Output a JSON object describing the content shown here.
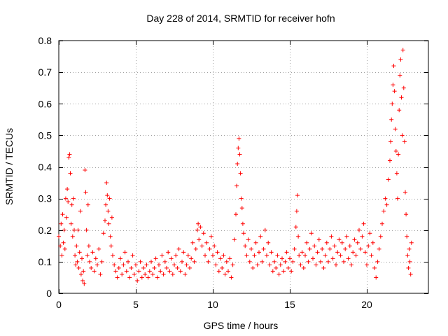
{
  "chart_data": {
    "type": "scatter",
    "title": "Day 228 of 2014, SRMTID for receiver hofn",
    "xlabel": "GPS time / hours",
    "ylabel": "SRMTID / TECUs",
    "xlim": [
      0,
      24
    ],
    "ylim": [
      0,
      0.8
    ],
    "grid": true,
    "marker": "+",
    "xticks": [
      0,
      5,
      10,
      15,
      20
    ],
    "xtick_labels": [
      "0",
      "5",
      "10",
      "15",
      "20"
    ],
    "yticks": [
      0,
      0.1,
      0.2,
      0.3,
      0.4,
      0.5,
      0.6,
      0.7,
      0.8
    ],
    "ytick_labels": [
      "0",
      "0.1",
      "0.2",
      "0.3",
      "0.4",
      "0.5",
      "0.6",
      "0.7",
      "0.8"
    ],
    "series": [
      {
        "name": "SRMTID",
        "color": "#ff0000",
        "points": [
          [
            0.0,
            0.18
          ],
          [
            0.1,
            0.15
          ],
          [
            0.15,
            0.22
          ],
          [
            0.2,
            0.12
          ],
          [
            0.25,
            0.25
          ],
          [
            0.3,
            0.16
          ],
          [
            0.35,
            0.2
          ],
          [
            0.4,
            0.14
          ],
          [
            0.45,
            0.3
          ],
          [
            0.5,
            0.24
          ],
          [
            0.55,
            0.33
          ],
          [
            0.6,
            0.29
          ],
          [
            0.65,
            0.43
          ],
          [
            0.7,
            0.44
          ],
          [
            0.75,
            0.38
          ],
          [
            0.8,
            0.22
          ],
          [
            0.85,
            0.28
          ],
          [
            0.9,
            0.18
          ],
          [
            0.95,
            0.3
          ],
          [
            1.0,
            0.2
          ],
          [
            1.05,
            0.12
          ],
          [
            1.1,
            0.09
          ],
          [
            1.15,
            0.15
          ],
          [
            1.2,
            0.1
          ],
          [
            1.25,
            0.2
          ],
          [
            1.3,
            0.08
          ],
          [
            1.35,
            0.13
          ],
          [
            1.4,
            0.26
          ],
          [
            1.45,
            0.06
          ],
          [
            1.5,
            0.11
          ],
          [
            1.55,
            0.04
          ],
          [
            1.6,
            0.07
          ],
          [
            1.65,
            0.03
          ],
          [
            1.7,
            0.39
          ],
          [
            1.75,
            0.32
          ],
          [
            1.8,
            0.2
          ],
          [
            1.85,
            0.12
          ],
          [
            1.9,
            0.28
          ],
          [
            1.95,
            0.15
          ],
          [
            2.0,
            0.1
          ],
          [
            2.1,
            0.08
          ],
          [
            2.2,
            0.13
          ],
          [
            2.3,
            0.07
          ],
          [
            2.4,
            0.11
          ],
          [
            2.5,
            0.09
          ],
          [
            2.6,
            0.14
          ],
          [
            2.7,
            0.06
          ],
          [
            2.8,
            0.1
          ],
          [
            2.9,
            0.19
          ],
          [
            3.0,
            0.23
          ],
          [
            3.05,
            0.28
          ],
          [
            3.1,
            0.35
          ],
          [
            3.15,
            0.31
          ],
          [
            3.2,
            0.26
          ],
          [
            3.25,
            0.22
          ],
          [
            3.3,
            0.3
          ],
          [
            3.35,
            0.18
          ],
          [
            3.4,
            0.15
          ],
          [
            3.45,
            0.24
          ],
          [
            3.5,
            0.12
          ],
          [
            3.6,
            0.09
          ],
          [
            3.7,
            0.07
          ],
          [
            3.8,
            0.05
          ],
          [
            3.9,
            0.08
          ],
          [
            4.0,
            0.11
          ],
          [
            4.1,
            0.06
          ],
          [
            4.2,
            0.09
          ],
          [
            4.3,
            0.13
          ],
          [
            4.4,
            0.07
          ],
          [
            4.5,
            0.1
          ],
          [
            4.6,
            0.05
          ],
          [
            4.7,
            0.08
          ],
          [
            4.8,
            0.12
          ],
          [
            4.9,
            0.06
          ],
          [
            5.0,
            0.09
          ],
          [
            5.1,
            0.04
          ],
          [
            5.2,
            0.07
          ],
          [
            5.3,
            0.1
          ],
          [
            5.4,
            0.05
          ],
          [
            5.5,
            0.08
          ],
          [
            5.6,
            0.06
          ],
          [
            5.7,
            0.09
          ],
          [
            5.8,
            0.05
          ],
          [
            5.9,
            0.07
          ],
          [
            6.0,
            0.1
          ],
          [
            6.1,
            0.06
          ],
          [
            6.2,
            0.08
          ],
          [
            6.3,
            0.11
          ],
          [
            6.4,
            0.05
          ],
          [
            6.5,
            0.09
          ],
          [
            6.6,
            0.07
          ],
          [
            6.7,
            0.12
          ],
          [
            6.8,
            0.06
          ],
          [
            6.9,
            0.1
          ],
          [
            7.0,
            0.08
          ],
          [
            7.1,
            0.13
          ],
          [
            7.2,
            0.07
          ],
          [
            7.3,
            0.11
          ],
          [
            7.4,
            0.06
          ],
          [
            7.5,
            0.09
          ],
          [
            7.6,
            0.12
          ],
          [
            7.7,
            0.08
          ],
          [
            7.8,
            0.14
          ],
          [
            7.9,
            0.07
          ],
          [
            8.0,
            0.1
          ],
          [
            8.1,
            0.13
          ],
          [
            8.2,
            0.06
          ],
          [
            8.3,
            0.09
          ],
          [
            8.4,
            0.12
          ],
          [
            8.5,
            0.08
          ],
          [
            8.6,
            0.11
          ],
          [
            8.7,
            0.16
          ],
          [
            8.8,
            0.1
          ],
          [
            8.9,
            0.14
          ],
          [
            9.0,
            0.2
          ],
          [
            9.05,
            0.22
          ],
          [
            9.1,
            0.17
          ],
          [
            9.2,
            0.21
          ],
          [
            9.3,
            0.15
          ],
          [
            9.4,
            0.19
          ],
          [
            9.5,
            0.12
          ],
          [
            9.6,
            0.16
          ],
          [
            9.7,
            0.1
          ],
          [
            9.8,
            0.14
          ],
          [
            9.9,
            0.18
          ],
          [
            10.0,
            0.12
          ],
          [
            10.1,
            0.15
          ],
          [
            10.2,
            0.09
          ],
          [
            10.3,
            0.13
          ],
          [
            10.4,
            0.07
          ],
          [
            10.5,
            0.11
          ],
          [
            10.6,
            0.08
          ],
          [
            10.7,
            0.12
          ],
          [
            10.8,
            0.06
          ],
          [
            10.9,
            0.1
          ],
          [
            11.0,
            0.07
          ],
          [
            11.1,
            0.11
          ],
          [
            11.2,
            0.05
          ],
          [
            11.3,
            0.09
          ],
          [
            11.4,
            0.17
          ],
          [
            11.5,
            0.25
          ],
          [
            11.55,
            0.34
          ],
          [
            11.6,
            0.41
          ],
          [
            11.65,
            0.46
          ],
          [
            11.7,
            0.49
          ],
          [
            11.75,
            0.44
          ],
          [
            11.8,
            0.38
          ],
          [
            11.85,
            0.3
          ],
          [
            11.9,
            0.27
          ],
          [
            11.95,
            0.22
          ],
          [
            12.0,
            0.19
          ],
          [
            12.1,
            0.15
          ],
          [
            12.2,
            0.12
          ],
          [
            12.3,
            0.17
          ],
          [
            12.4,
            0.1
          ],
          [
            12.5,
            0.14
          ],
          [
            12.6,
            0.08
          ],
          [
            12.7,
            0.12
          ],
          [
            12.8,
            0.16
          ],
          [
            12.9,
            0.09
          ],
          [
            13.0,
            0.13
          ],
          [
            13.1,
            0.18
          ],
          [
            13.2,
            0.1
          ],
          [
            13.3,
            0.14
          ],
          [
            13.4,
            0.2
          ],
          [
            13.5,
            0.12
          ],
          [
            13.6,
            0.16
          ],
          [
            13.7,
            0.09
          ],
          [
            13.8,
            0.13
          ],
          [
            13.9,
            0.07
          ],
          [
            14.0,
            0.1
          ],
          [
            14.1,
            0.08
          ],
          [
            14.2,
            0.12
          ],
          [
            14.3,
            0.06
          ],
          [
            14.4,
            0.09
          ],
          [
            14.5,
            0.11
          ],
          [
            14.6,
            0.07
          ],
          [
            14.7,
            0.1
          ],
          [
            14.8,
            0.13
          ],
          [
            14.9,
            0.08
          ],
          [
            15.0,
            0.11
          ],
          [
            15.1,
            0.07
          ],
          [
            15.2,
            0.1
          ],
          [
            15.3,
            0.14
          ],
          [
            15.4,
            0.21
          ],
          [
            15.45,
            0.26
          ],
          [
            15.5,
            0.31
          ],
          [
            15.55,
            0.18
          ],
          [
            15.6,
            0.12
          ],
          [
            15.7,
            0.09
          ],
          [
            15.8,
            0.13
          ],
          [
            15.9,
            0.08
          ],
          [
            16.0,
            0.12
          ],
          [
            16.1,
            0.16
          ],
          [
            16.2,
            0.1
          ],
          [
            16.3,
            0.14
          ],
          [
            16.4,
            0.19
          ],
          [
            16.5,
            0.11
          ],
          [
            16.6,
            0.15
          ],
          [
            16.7,
            0.09
          ],
          [
            16.8,
            0.13
          ],
          [
            16.9,
            0.17
          ],
          [
            17.0,
            0.1
          ],
          [
            17.1,
            0.14
          ],
          [
            17.2,
            0.08
          ],
          [
            17.3,
            0.12
          ],
          [
            17.4,
            0.16
          ],
          [
            17.5,
            0.1
          ],
          [
            17.6,
            0.14
          ],
          [
            17.7,
            0.18
          ],
          [
            17.8,
            0.11
          ],
          [
            17.9,
            0.15
          ],
          [
            18.0,
            0.09
          ],
          [
            18.1,
            0.13
          ],
          [
            18.2,
            0.17
          ],
          [
            18.3,
            0.12
          ],
          [
            18.4,
            0.16
          ],
          [
            18.5,
            0.1
          ],
          [
            18.6,
            0.14
          ],
          [
            18.7,
            0.18
          ],
          [
            18.8,
            0.11
          ],
          [
            18.9,
            0.15
          ],
          [
            19.0,
            0.09
          ],
          [
            19.1,
            0.13
          ],
          [
            19.2,
            0.17
          ],
          [
            19.3,
            0.12
          ],
          [
            19.4,
            0.16
          ],
          [
            19.5,
            0.2
          ],
          [
            19.6,
            0.14
          ],
          [
            19.7,
            0.18
          ],
          [
            19.8,
            0.22
          ],
          [
            19.9,
            0.13
          ],
          [
            20.0,
            0.09
          ],
          [
            20.1,
            0.15
          ],
          [
            20.2,
            0.19
          ],
          [
            20.3,
            0.12
          ],
          [
            20.4,
            0.16
          ],
          [
            20.5,
            0.08
          ],
          [
            20.6,
            0.05
          ],
          [
            20.7,
            0.1
          ],
          [
            20.8,
            0.14
          ],
          [
            20.9,
            0.18
          ],
          [
            21.0,
            0.22
          ],
          [
            21.1,
            0.26
          ],
          [
            21.2,
            0.3
          ],
          [
            21.3,
            0.28
          ],
          [
            21.4,
            0.36
          ],
          [
            21.5,
            0.42
          ],
          [
            21.55,
            0.48
          ],
          [
            21.6,
            0.55
          ],
          [
            21.65,
            0.6
          ],
          [
            21.7,
            0.66
          ],
          [
            21.75,
            0.72
          ],
          [
            21.8,
            0.64
          ],
          [
            21.85,
            0.52
          ],
          [
            21.9,
            0.45
          ],
          [
            21.95,
            0.38
          ],
          [
            22.0,
            0.3
          ],
          [
            22.05,
            0.44
          ],
          [
            22.1,
            0.58
          ],
          [
            22.15,
            0.69
          ],
          [
            22.2,
            0.74
          ],
          [
            22.25,
            0.62
          ],
          [
            22.3,
            0.5
          ],
          [
            22.35,
            0.77
          ],
          [
            22.4,
            0.65
          ],
          [
            22.45,
            0.48
          ],
          [
            22.5,
            0.32
          ],
          [
            22.55,
            0.25
          ],
          [
            22.6,
            0.18
          ],
          [
            22.65,
            0.12
          ],
          [
            22.7,
            0.08
          ],
          [
            22.75,
            0.14
          ],
          [
            22.8,
            0.1
          ],
          [
            22.85,
            0.06
          ],
          [
            22.9,
            0.16
          ]
        ]
      }
    ]
  }
}
